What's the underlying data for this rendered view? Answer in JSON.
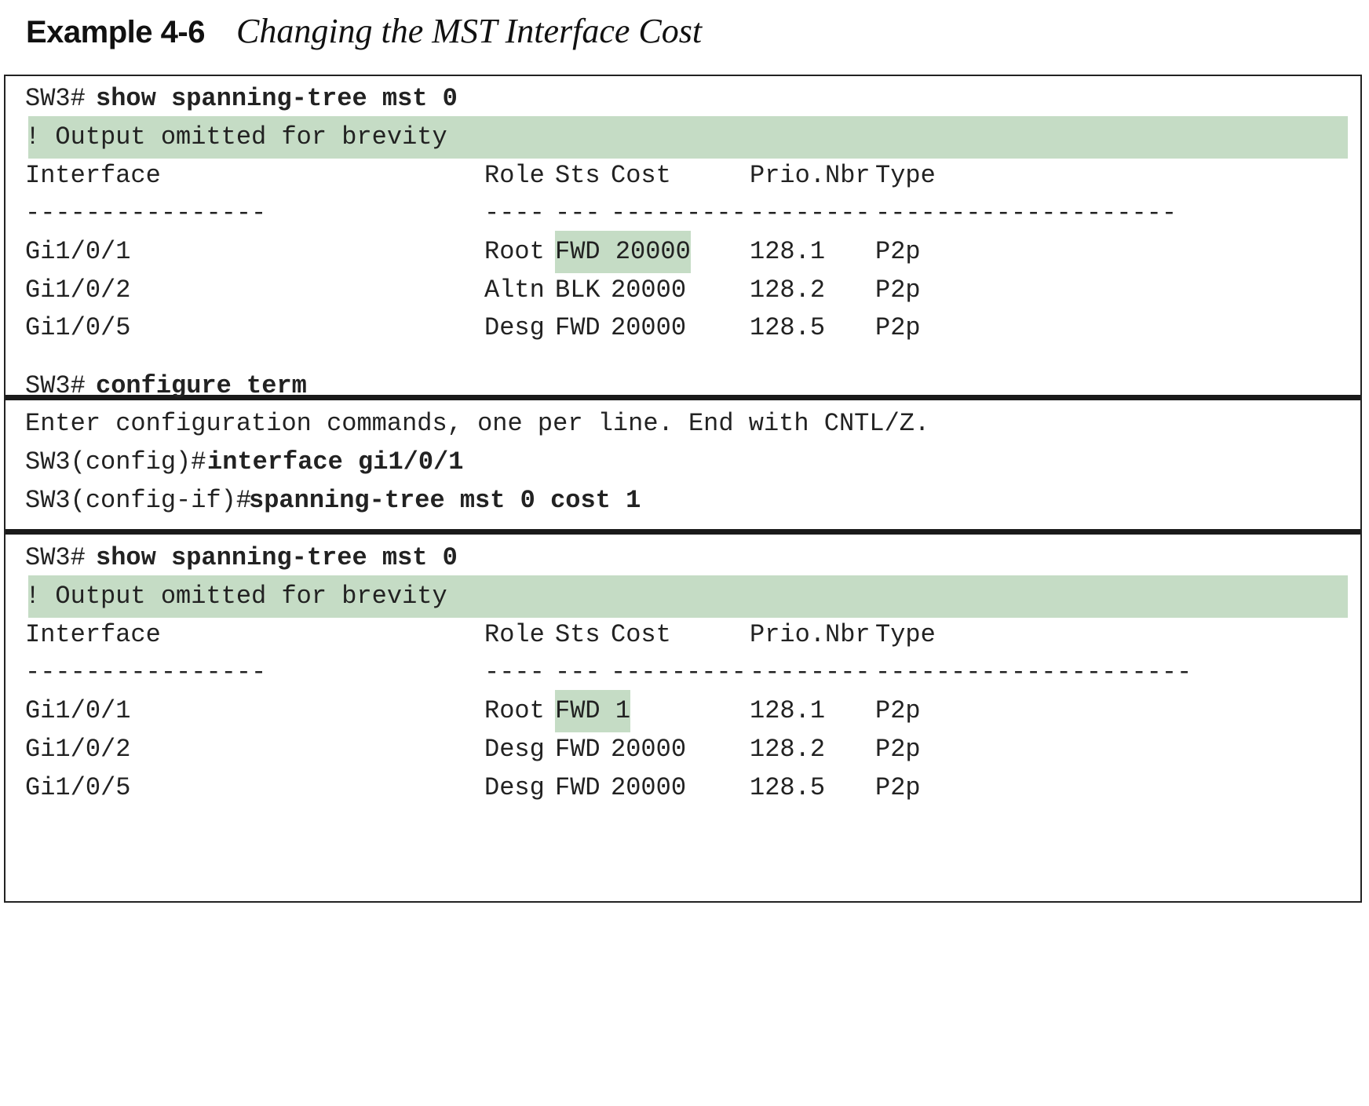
{
  "example": {
    "label": "Example 4-6",
    "title": "Changing the MST Interface Cost"
  },
  "block1": {
    "prompt": "SW3#",
    "command": "show spanning-tree mst 0",
    "note": "! Output omitted for brevity",
    "headers": {
      "interface": "Interface",
      "role": "Role",
      "sts": "Sts",
      "cost": "Cost",
      "prio": "Prio.Nbr",
      "type": "Type"
    },
    "dashes": {
      "interface": "----------------",
      "role": "----",
      "sts": "---",
      "cost": "---------",
      "prio": "--------",
      "type": "--------------------"
    },
    "rows": [
      {
        "interface": "Gi1/0/1",
        "role": "Root",
        "sts": "FWD",
        "cost": "20000",
        "prio": "128.1",
        "type": "P2p",
        "highlight": "FWD 20000"
      },
      {
        "interface": "Gi1/0/2",
        "role": "Altn",
        "sts": "BLK",
        "cost": "20000",
        "prio": "128.2",
        "type": "P2p"
      },
      {
        "interface": "Gi1/0/5",
        "role": "Desg",
        "sts": "FWD",
        "cost": "20000",
        "prio": "128.5",
        "type": "P2p"
      }
    ]
  },
  "block2": {
    "lines": [
      {
        "prompt": "SW3#",
        "command": "configure term"
      },
      {
        "output": "Enter configuration commands, one per line. End with CNTL/Z."
      },
      {
        "prompt": "SW3(config)#",
        "command": "interface gi1/0/1"
      },
      {
        "prompt": "SW3(config-if)#",
        "command": "spanning-tree mst 0 cost 1"
      }
    ]
  },
  "block3": {
    "prompt": "SW3#",
    "command": "show spanning-tree mst 0",
    "note": "! Output omitted for brevity",
    "headers": {
      "interface": "Interface",
      "role": "Role",
      "sts": "Sts",
      "cost": "Cost",
      "prio": "Prio.Nbr",
      "type": "Type"
    },
    "dashes": {
      "interface": "----------------",
      "role": "----",
      "sts": "---",
      "cost": "---------",
      "prio": "--------",
      "type": "---------------------"
    },
    "rows": [
      {
        "interface": "Gi1/0/1",
        "role": "Root",
        "sts": "FWD",
        "cost": "1",
        "prio": "128.1",
        "type": "P2p",
        "highlight": "FWD 1"
      },
      {
        "interface": "Gi1/0/2",
        "role": "Desg",
        "sts": "FWD",
        "cost": "20000",
        "prio": "128.2",
        "type": "P2p"
      },
      {
        "interface": "Gi1/0/5",
        "role": "Desg",
        "sts": "FWD",
        "cost": "20000",
        "prio": "128.5",
        "type": "P2p"
      }
    ]
  },
  "colors": {
    "highlight": "#c5dcc5",
    "rule": "#1a1a1a",
    "text": "#222222"
  }
}
